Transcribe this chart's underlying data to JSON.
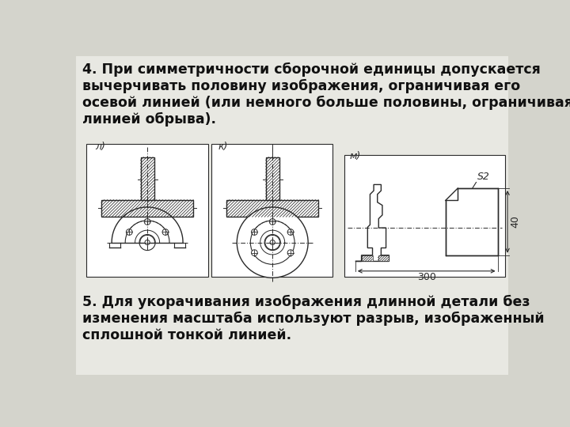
{
  "bg_color": "#d4d4cc",
  "panel_color": "#e8e8e2",
  "text1": "4. При симметричности сборочной единицы допускается\nвычерчивать половину изображения, ограничивая его\nосевой линией (или немного больше половины, ограничивая\nлинией обрыва).",
  "text2": "5. Для укорачивания изображения длинной детали без\nизменения масштаба используют разрыв, изображенный\nсплошной тонкой линией.",
  "label_l": "л)",
  "label_k": "к)",
  "label_m": "м)",
  "dim_s2": "S2",
  "dim_300": "300",
  "dim_40": "40",
  "line_color": "#2a2a2a",
  "white": "#ffffff",
  "font_size_text": 12.5,
  "font_size_label": 10
}
